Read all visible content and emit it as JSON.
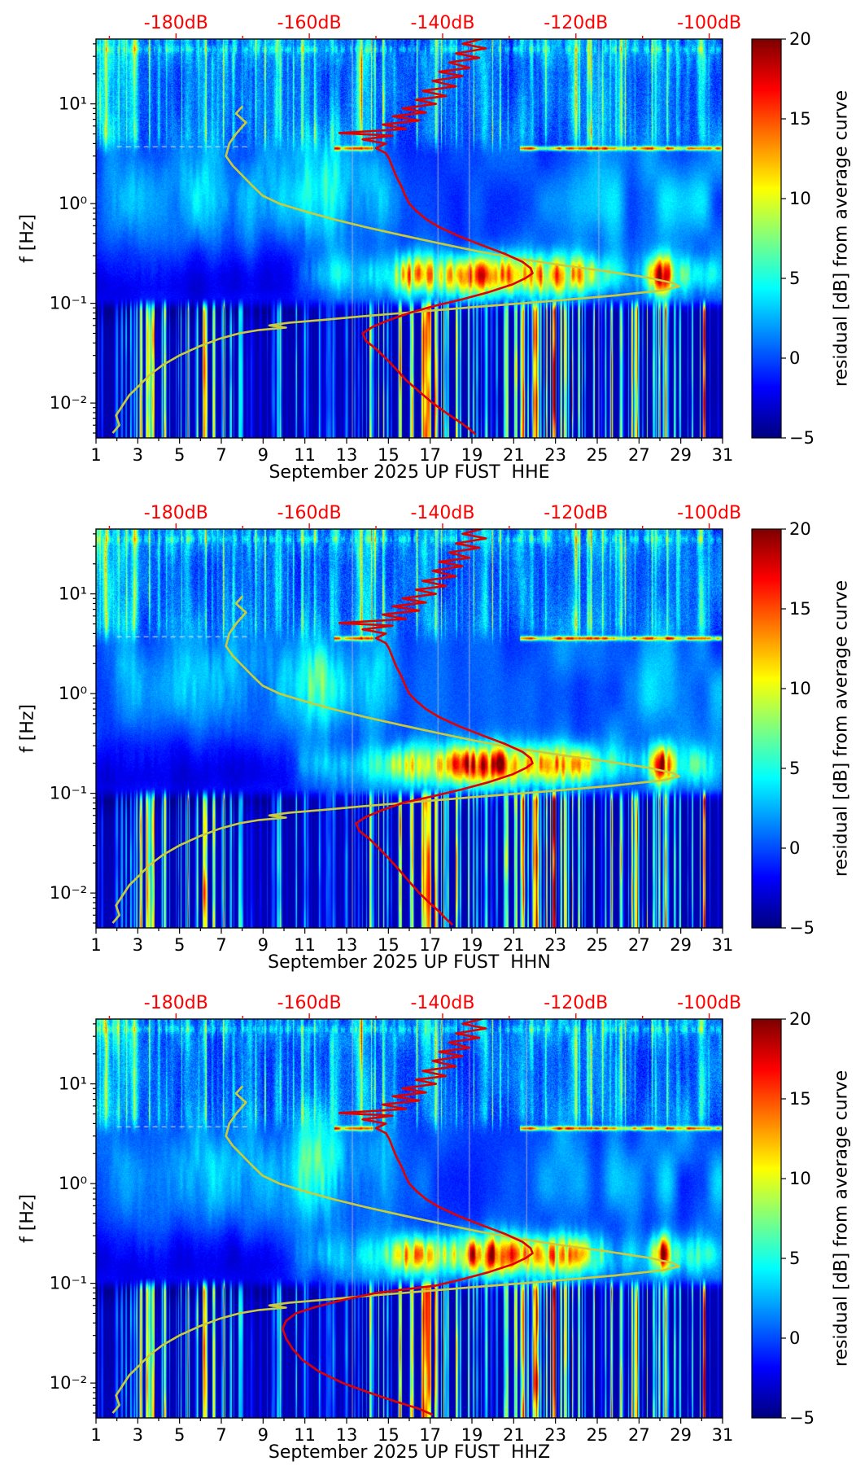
{
  "axes": {
    "x": {
      "tick_labels": [
        "1",
        "3",
        "5",
        "7",
        "9",
        "11",
        "13",
        "15",
        "17",
        "19",
        "21",
        "23",
        "25",
        "27",
        "29",
        "31"
      ],
      "tick_days": [
        1,
        3,
        5,
        7,
        9,
        11,
        13,
        15,
        17,
        19,
        21,
        23,
        25,
        27,
        29,
        31
      ],
      "day_range": [
        1,
        31
      ]
    },
    "y": {
      "label": "f [Hz]",
      "tick_labels": [
        "10¹",
        "10⁰",
        "10⁻¹",
        "10⁻²"
      ],
      "tick_exponents": [
        1,
        0,
        -1,
        -2
      ],
      "freq_exp_range": [
        1.65,
        -2.35
      ]
    },
    "top": {
      "color": "#ff0000",
      "tick_labels": [
        "-180dB",
        "-160dB",
        "-140dB",
        "-120dB",
        "-100dB"
      ],
      "tick_db": [
        -180,
        -160,
        -140,
        -120,
        -100
      ],
      "minor_db": [
        -190,
        -170,
        -150,
        -130,
        -110
      ],
      "db_range": [
        -192,
        -98
      ]
    }
  },
  "colorbar": {
    "label": "residual [dB] from average curve",
    "min": -5,
    "max": 20,
    "tick_labels": [
      "20",
      "15",
      "10",
      "5",
      "0",
      "−5"
    ],
    "tick_values": [
      20,
      15,
      10,
      5,
      0,
      -5
    ],
    "colormap": "jet"
  },
  "chart_data": {
    "type": "heatmap",
    "description": "Three stacked day-frequency spectrograms of PSD residual [dB] from average curve, station UP.FUST, September 2025, channels HHE/HHN/HHZ, jet colormap, with overlaid red and yellow PSD-vs-frequency curves referenced to the top dB axis.",
    "x_unit": "day of September 2025",
    "y_unit": "Hz",
    "value_unit": "residual dB from average curve",
    "value_range": [
      -5,
      20
    ],
    "panels": [
      {
        "id": "HHE",
        "xlabel": "September 2025 UP FUST  HHE",
        "gap_days": [
          13.25,
          17.35,
          18.85,
          25.05
        ]
      },
      {
        "id": "HHN",
        "xlabel": "September 2025 UP FUST  HHN",
        "gap_days": [
          13.25,
          17.35,
          18.85
        ]
      },
      {
        "id": "HHZ",
        "xlabel": "September 2025 UP FUST  HHZ",
        "gap_days": [
          13.25,
          17.35,
          18.85,
          21.6
        ]
      }
    ],
    "overlay_curves": {
      "red": {
        "color": "#e00000",
        "db_axis": "top",
        "points_freq_db_upper": [
          [
            45,
            -134
          ],
          [
            40,
            -137
          ],
          [
            36,
            -133.5
          ],
          [
            32,
            -138
          ],
          [
            29,
            -134.5
          ],
          [
            26,
            -139
          ],
          [
            23,
            -136
          ],
          [
            21,
            -140.5
          ],
          [
            19,
            -137
          ],
          [
            17,
            -141.5
          ],
          [
            15,
            -138
          ],
          [
            13.5,
            -143
          ],
          [
            12,
            -139.5
          ],
          [
            11,
            -144
          ],
          [
            10,
            -141
          ],
          [
            9,
            -146
          ],
          [
            8.2,
            -142.5
          ],
          [
            7.5,
            -147.5
          ],
          [
            6.8,
            -143.5
          ],
          [
            6.2,
            -149
          ],
          [
            5.6,
            -145.5
          ],
          [
            5.1,
            -155.5
          ],
          [
            4.8,
            -147.5
          ],
          [
            4.4,
            -152
          ],
          [
            4,
            -148.5
          ],
          [
            3.6,
            -150
          ],
          [
            3.2,
            -148.5
          ],
          [
            2.8,
            -148
          ],
          [
            2.3,
            -147.5
          ],
          [
            1.9,
            -147
          ],
          [
            1.5,
            -146.2
          ],
          [
            1.2,
            -145.6
          ],
          [
            1,
            -145
          ],
          [
            0.85,
            -144
          ],
          [
            0.7,
            -142.5
          ],
          [
            0.58,
            -140.5
          ],
          [
            0.47,
            -137.5
          ],
          [
            0.38,
            -134
          ],
          [
            0.31,
            -130.5
          ],
          [
            0.26,
            -128
          ],
          [
            0.225,
            -126.8
          ],
          [
            0.2,
            -126.5
          ],
          [
            0.18,
            -127.5
          ],
          [
            0.155,
            -129.5
          ],
          [
            0.13,
            -133
          ],
          [
            0.11,
            -137
          ],
          [
            0.095,
            -141
          ]
        ],
        "tails": {
          "HHE": [
            [
              0.08,
              -145
            ],
            [
              0.068,
              -148
            ],
            [
              0.058,
              -150.5
            ],
            [
              0.05,
              -152
            ],
            [
              0.042,
              -151.5
            ],
            [
              0.035,
              -150
            ],
            [
              0.028,
              -148.5
            ],
            [
              0.022,
              -147
            ],
            [
              0.017,
              -145.5
            ],
            [
              0.013,
              -143.5
            ],
            [
              0.01,
              -141.5
            ],
            [
              0.008,
              -139.5
            ],
            [
              0.0065,
              -137.5
            ],
            [
              0.0055,
              -136
            ],
            [
              0.0048,
              -135
            ]
          ],
          "HHN": [
            [
              0.08,
              -146
            ],
            [
              0.068,
              -149
            ],
            [
              0.058,
              -151.5
            ],
            [
              0.05,
              -153
            ],
            [
              0.042,
              -152.5
            ],
            [
              0.035,
              -151
            ],
            [
              0.028,
              -149.5
            ],
            [
              0.022,
              -148
            ],
            [
              0.017,
              -146.5
            ],
            [
              0.013,
              -145
            ],
            [
              0.01,
              -143.5
            ],
            [
              0.008,
              -142
            ],
            [
              0.0065,
              -140.5
            ],
            [
              0.0055,
              -139.5
            ],
            [
              0.0048,
              -138.5
            ]
          ],
          "HHZ": [
            [
              0.08,
              -150
            ],
            [
              0.068,
              -155
            ],
            [
              0.058,
              -159
            ],
            [
              0.05,
              -162
            ],
            [
              0.042,
              -163.5
            ],
            [
              0.035,
              -164
            ],
            [
              0.028,
              -163.5
            ],
            [
              0.022,
              -162.5
            ],
            [
              0.017,
              -161
            ],
            [
              0.013,
              -158.5
            ],
            [
              0.01,
              -155
            ],
            [
              0.008,
              -151
            ],
            [
              0.0065,
              -147
            ],
            [
              0.0055,
              -143.5
            ],
            [
              0.0048,
              -141.5
            ]
          ]
        }
      },
      "yellow": {
        "color": "#cbcb3a",
        "db_axis": "top",
        "points_freq_db": [
          [
            9.5,
            -170
          ],
          [
            8,
            -171
          ],
          [
            6.5,
            -169.5
          ],
          [
            5,
            -171
          ],
          [
            4,
            -172
          ],
          [
            3,
            -172.5
          ],
          [
            2.4,
            -171.5
          ],
          [
            1.9,
            -170
          ],
          [
            1.5,
            -168.5
          ],
          [
            1.2,
            -167
          ],
          [
            1,
            -164.5
          ],
          [
            0.85,
            -161
          ],
          [
            0.7,
            -156.5
          ],
          [
            0.58,
            -151.5
          ],
          [
            0.48,
            -146
          ],
          [
            0.4,
            -140.5
          ],
          [
            0.33,
            -134.5
          ],
          [
            0.28,
            -128.5
          ],
          [
            0.24,
            -122
          ],
          [
            0.21,
            -115.5
          ],
          [
            0.18,
            -109
          ],
          [
            0.16,
            -105.5
          ],
          [
            0.148,
            -104.5
          ],
          [
            0.135,
            -107
          ],
          [
            0.12,
            -114
          ],
          [
            0.105,
            -124
          ],
          [
            0.092,
            -135
          ],
          [
            0.082,
            -144
          ],
          [
            0.074,
            -152
          ],
          [
            0.068,
            -158
          ],
          [
            0.064,
            -163
          ],
          [
            0.06,
            -166
          ],
          [
            0.057,
            -163.5
          ],
          [
            0.054,
            -167.5
          ],
          [
            0.05,
            -170.5
          ],
          [
            0.044,
            -173.5
          ],
          [
            0.037,
            -176.5
          ],
          [
            0.03,
            -179.5
          ],
          [
            0.024,
            -182
          ],
          [
            0.019,
            -184
          ],
          [
            0.015,
            -185.5
          ],
          [
            0.012,
            -187
          ],
          [
            0.0095,
            -188
          ],
          [
            0.0075,
            -189
          ],
          [
            0.006,
            -188.5
          ],
          [
            0.005,
            -189.5
          ]
        ]
      }
    }
  }
}
